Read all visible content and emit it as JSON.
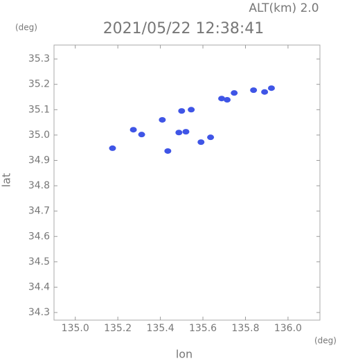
{
  "chart_data": {
    "type": "scatter",
    "header": "ALT(km) 2.0",
    "title": "2021/05/22 12:38:41",
    "y_unit": "(deg)",
    "x_unit": "(deg)",
    "xlabel": "lon",
    "ylabel": "lat",
    "x": [
      135.922,
      135.89,
      135.838,
      135.747,
      135.688,
      135.714,
      135.545,
      135.5,
      135.409,
      135.273,
      135.312,
      135.487,
      135.52,
      135.591,
      135.636,
      135.435,
      135.175
    ],
    "values": [
      35.185,
      35.17,
      35.177,
      35.166,
      35.144,
      35.139,
      35.1,
      35.095,
      35.06,
      35.021,
      35.002,
      35.01,
      35.013,
      34.972,
      34.991,
      34.937,
      34.948
    ],
    "color": "#3f55e6",
    "xlim": [
      134.9,
      136.15
    ],
    "ylim": [
      34.27,
      35.355
    ],
    "xticks": [
      {
        "value": 135,
        "label": "135.0"
      },
      135.2,
      135.4,
      135.6,
      135.8,
      {
        "value": 136,
        "label": "136.0"
      }
    ],
    "yticks": [
      34.3,
      34.4,
      34.5,
      34.6,
      34.7,
      34.8,
      34.9,
      {
        "value": 35,
        "label": "35.0"
      },
      35.1,
      35.2,
      35.3
    ]
  }
}
